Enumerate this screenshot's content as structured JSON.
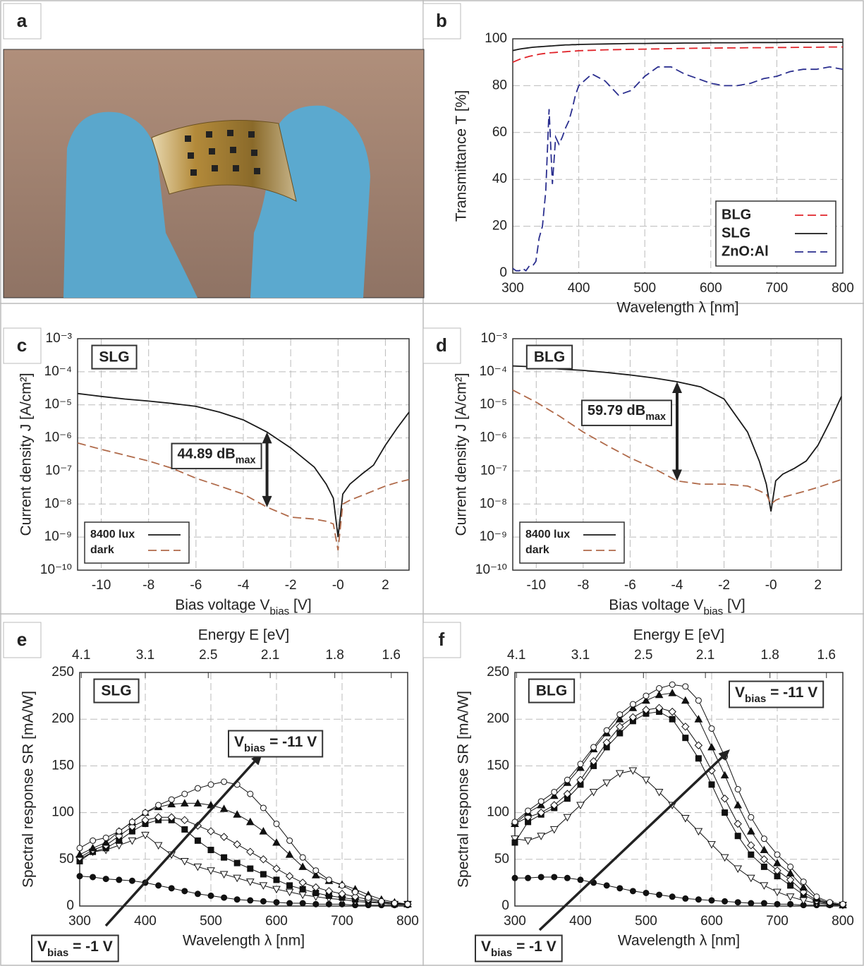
{
  "photo": {
    "panel": "a"
  },
  "chart_data": [
    {
      "type": "line",
      "panel": "b",
      "xlabel": "Wavelength λ [nm]",
      "ylabel": "Transmittance T [%]",
      "xlim": [
        300,
        800
      ],
      "xticks": [
        300,
        400,
        500,
        600,
        700,
        800
      ],
      "ylim": [
        0,
        100
      ],
      "yticks": [
        0,
        20,
        40,
        60,
        80,
        100
      ],
      "grid": true,
      "legend": "lower right",
      "x": [
        300,
        305,
        310,
        315,
        320,
        325,
        330,
        335,
        340,
        345,
        350,
        355,
        360,
        365,
        370,
        375,
        380,
        385,
        390,
        395,
        400,
        420,
        440,
        460,
        480,
        500,
        520,
        540,
        560,
        580,
        600,
        620,
        640,
        660,
        680,
        700,
        720,
        740,
        760,
        780,
        800
      ],
      "series": [
        {
          "name": "BLG",
          "color": "#e0242a",
          "dash": true,
          "values": [
            90,
            90.6,
            91.2,
            91.7,
            92.1,
            92.5,
            92.8,
            93.1,
            93.4,
            93.6,
            93.8,
            94,
            94.1,
            94.2,
            94.3,
            94.4,
            94.5,
            94.6,
            94.7,
            94.8,
            94.9,
            95.1,
            95.3,
            95.4,
            95.5,
            95.6,
            95.7,
            95.8,
            95.9,
            96,
            96,
            96.1,
            96.1,
            96.2,
            96.2,
            96.3,
            96.3,
            96.4,
            96.4,
            96.5,
            96.5
          ]
        },
        {
          "name": "SLG",
          "color": "#1a1a1a",
          "dash": false,
          "values": [
            95,
            95.3,
            95.6,
            95.8,
            96,
            96.2,
            96.4,
            96.5,
            96.6,
            96.7,
            96.8,
            96.9,
            97,
            97.1,
            97.2,
            97.3,
            97.4,
            97.4,
            97.5,
            97.5,
            97.6,
            97.7,
            97.8,
            97.9,
            98,
            98,
            98.1,
            98.1,
            98.2,
            98.2,
            98.3,
            98.3,
            98.3,
            98.4,
            98.4,
            98.4,
            98.5,
            98.5,
            98.5,
            98.5,
            98.5
          ]
        },
        {
          "name": "ZnO:Al",
          "color": "#2b2f8f",
          "dash": true,
          "values": [
            2,
            1,
            1,
            2,
            1,
            3,
            3,
            5,
            15,
            20,
            35,
            70,
            38,
            58,
            55,
            58,
            62,
            65,
            70,
            76,
            80,
            85,
            82,
            76,
            78,
            84,
            88,
            88,
            85,
            83,
            81,
            80,
            80,
            81,
            83,
            84,
            86,
            87,
            87,
            88,
            87
          ]
        }
      ]
    },
    {
      "type": "line",
      "panel": "c",
      "tag": "SLG",
      "yscale": "log",
      "xlabel": {
        "text": "Bias voltage V",
        "sub": "bias",
        "tail": " [V]"
      },
      "ylabel": "Current density J [A/cm²]",
      "xlim": [
        -11,
        3
      ],
      "xticks": [
        -10,
        -8,
        -6,
        -4,
        -2,
        {
          "value": 0,
          "label": "-0"
        },
        2
      ],
      "ylim": [
        1e-10,
        0.001
      ],
      "yticks": [
        {
          "value": 1e-10,
          "label": "10⁻¹⁰"
        },
        {
          "value": 1e-09,
          "label": "10⁻⁹"
        },
        {
          "value": 1e-08,
          "label": "10⁻⁸"
        },
        {
          "value": 1e-07,
          "label": "10⁻⁷"
        },
        {
          "value": 1e-06,
          "label": "10⁻⁶"
        },
        {
          "value": 1e-05,
          "label": "10⁻⁵"
        },
        {
          "value": 0.0001,
          "label": "10⁻⁴"
        },
        {
          "value": 0.001,
          "label": "10⁻³"
        }
      ],
      "grid": true,
      "legend": "lower left",
      "annotation": {
        "text": "44.89 dB",
        "sub": "max"
      },
      "x": [
        -11,
        -10,
        -9,
        -8,
        -7,
        -6,
        -5,
        -4,
        -3,
        -2,
        -1,
        -0.5,
        -0.2,
        0,
        0.2,
        0.5,
        1,
        1.5,
        2,
        2.5,
        3
      ],
      "series": [
        {
          "name": "8400 lux",
          "color": "#1a1a1a",
          "dash": false,
          "values": [
            2.2e-05,
            1.8e-05,
            1.5e-05,
            1.3e-05,
            1.1e-05,
            9e-06,
            6e-06,
            3.5e-06,
            1.5e-06,
            5e-07,
            1.3e-07,
            4e-08,
            1.5e-08,
            1e-09,
            2e-08,
            4e-08,
            8e-08,
            1.5e-07,
            6e-07,
            2e-06,
            6e-06
          ]
        },
        {
          "name": "dark",
          "color": "#b06a4a",
          "dash": true,
          "values": [
            7e-07,
            4.5e-07,
            3e-07,
            2e-07,
            1.2e-07,
            6e-08,
            3.5e-08,
            2e-08,
            8e-09,
            4e-09,
            3.5e-09,
            3e-09,
            2.5e-09,
            4e-10,
            1e-08,
            1.3e-08,
            1.8e-08,
            2.5e-08,
            3.5e-08,
            4.5e-08,
            5.5e-08
          ]
        }
      ]
    },
    {
      "type": "line",
      "panel": "d",
      "tag": "BLG",
      "yscale": "log",
      "xlabel": {
        "text": "Bias voltage V",
        "sub": "bias",
        "tail": " [V]"
      },
      "ylabel": "Current density J [A/cm²]",
      "xlim": [
        -11,
        3
      ],
      "xticks": [
        -10,
        -8,
        -6,
        -4,
        -2,
        {
          "value": 0,
          "label": "-0"
        },
        2
      ],
      "ylim": [
        1e-10,
        0.001
      ],
      "yticks": [
        {
          "value": 1e-10,
          "label": "10⁻¹⁰"
        },
        {
          "value": 1e-09,
          "label": "10⁻⁹"
        },
        {
          "value": 1e-08,
          "label": "10⁻⁸"
        },
        {
          "value": 1e-07,
          "label": "10⁻⁷"
        },
        {
          "value": 1e-06,
          "label": "10⁻⁶"
        },
        {
          "value": 1e-05,
          "label": "10⁻⁵"
        },
        {
          "value": 0.0001,
          "label": "10⁻⁴"
        },
        {
          "value": 0.001,
          "label": "10⁻³"
        }
      ],
      "grid": true,
      "legend": "lower left",
      "annotation": {
        "text": "59.79 dB",
        "sub": "max"
      },
      "x": [
        -11,
        -10,
        -9,
        -8,
        -7,
        -6,
        -5,
        -4,
        -3,
        -2,
        -1,
        -0.5,
        -0.2,
        0,
        0.2,
        0.5,
        1,
        1.5,
        2,
        2.5,
        3
      ],
      "series": [
        {
          "name": "8400 lux",
          "color": "#1a1a1a",
          "dash": false,
          "values": [
            0.00015,
            0.00014,
            0.00012,
            0.00011,
            9.5e-05,
            8e-05,
            6.5e-05,
            5e-05,
            3.5e-05,
            1.5e-05,
            1.5e-06,
            2e-07,
            4e-08,
            6e-09,
            5e-08,
            8e-08,
            1.2e-07,
            2e-07,
            6e-07,
            3e-06,
            1.8e-05
          ]
        },
        {
          "name": "dark",
          "color": "#b06a4a",
          "dash": true,
          "values": [
            2.8e-05,
            1.2e-05,
            4.5e-06,
            1.5e-06,
            6e-07,
            2.5e-07,
            1.2e-07,
            5e-08,
            4e-08,
            4e-08,
            3.5e-08,
            2.5e-08,
            2e-08,
            1e-08,
            1.3e-08,
            1.6e-08,
            2e-08,
            2.5e-08,
            3.2e-08,
            4.2e-08,
            5.5e-08
          ]
        }
      ]
    },
    {
      "type": "line",
      "panel": "e",
      "tag": "SLG",
      "xlabel": "Wavelength λ [nm]",
      "ylabel": "Spectral response SR [mA/W]",
      "x2label": "Energy E [eV]",
      "xlim": [
        300,
        800
      ],
      "xticks": [
        300,
        400,
        500,
        600,
        700,
        800
      ],
      "ylim": [
        0,
        250
      ],
      "yticks": [
        0,
        50,
        100,
        150,
        200,
        250
      ],
      "x2ticks": [
        4.1,
        3.1,
        2.5,
        2.1,
        1.8,
        1.6
      ],
      "grid": true,
      "annotations": [
        {
          "main": "V",
          "sub": "bias",
          "tail": " = -11 V"
        },
        {
          "main": "V",
          "sub": "bias",
          "tail": " = -1 V"
        }
      ],
      "x": [
        300,
        320,
        340,
        360,
        380,
        400,
        420,
        440,
        460,
        480,
        500,
        520,
        540,
        560,
        580,
        600,
        620,
        640,
        660,
        680,
        700,
        720,
        740,
        760,
        780,
        800
      ],
      "series": [
        {
          "color": "#111",
          "marker": "circle",
          "filled": true,
          "values": [
            32,
            31,
            29,
            28,
            27,
            25,
            22,
            19,
            16,
            13,
            11,
            9,
            7,
            6,
            5,
            4,
            3,
            3,
            2,
            2,
            2,
            1,
            1,
            1,
            1,
            1
          ]
        },
        {
          "color": "#111",
          "marker": "triangle-down",
          "filled": false,
          "values": [
            50,
            58,
            60,
            65,
            70,
            76,
            65,
            55,
            48,
            42,
            38,
            34,
            30,
            26,
            22,
            18,
            15,
            12,
            10,
            8,
            7,
            5,
            4,
            3,
            2,
            2
          ]
        },
        {
          "color": "#111",
          "marker": "square",
          "filled": true,
          "values": [
            48,
            58,
            62,
            70,
            80,
            88,
            92,
            92,
            82,
            70,
            60,
            52,
            46,
            40,
            34,
            28,
            22,
            18,
            14,
            11,
            9,
            7,
            5,
            3,
            2,
            2
          ]
        },
        {
          "color": "#111",
          "marker": "diamond",
          "filled": false,
          "values": [
            52,
            60,
            65,
            75,
            85,
            92,
            95,
            95,
            92,
            86,
            80,
            74,
            66,
            58,
            50,
            40,
            32,
            25,
            20,
            16,
            13,
            10,
            7,
            4,
            3,
            2
          ]
        },
        {
          "color": "#111",
          "marker": "triangle-up",
          "filled": true,
          "values": [
            55,
            62,
            68,
            80,
            90,
            100,
            106,
            109,
            110,
            110,
            108,
            104,
            98,
            90,
            80,
            68,
            55,
            42,
            33,
            27,
            23,
            18,
            12,
            7,
            4,
            2
          ]
        },
        {
          "color": "#111",
          "marker": "circle",
          "filled": false,
          "values": [
            62,
            70,
            73,
            80,
            90,
            100,
            108,
            114,
            120,
            126,
            130,
            133,
            130,
            120,
            105,
            88,
            70,
            52,
            38,
            28,
            22,
            15,
            9,
            5,
            3,
            2
          ]
        }
      ]
    },
    {
      "type": "line",
      "panel": "f",
      "tag": "BLG",
      "xlabel": "Wavelength λ [nm]",
      "ylabel": "Spectral response SR [mA/W]",
      "x2label": "Energy E [eV]",
      "xlim": [
        300,
        800
      ],
      "xticks": [
        300,
        400,
        500,
        600,
        700,
        800
      ],
      "ylim": [
        0,
        250
      ],
      "yticks": [
        0,
        50,
        100,
        150,
        200,
        250
      ],
      "x2ticks": [
        4.1,
        3.1,
        2.5,
        2.1,
        1.8,
        1.6
      ],
      "grid": true,
      "annotations": [
        {
          "main": "V",
          "sub": "bias",
          "tail": " = -11 V"
        },
        {
          "main": "V",
          "sub": "bias",
          "tail": " = -1 V"
        }
      ],
      "x": [
        300,
        320,
        340,
        360,
        380,
        400,
        420,
        440,
        460,
        480,
        500,
        520,
        540,
        560,
        580,
        600,
        620,
        640,
        660,
        680,
        700,
        720,
        740,
        760,
        780,
        800
      ],
      "series": [
        {
          "color": "#111",
          "marker": "circle",
          "filled": true,
          "values": [
            30,
            30,
            31,
            31,
            30,
            28,
            25,
            22,
            19,
            16,
            14,
            12,
            10,
            8,
            7,
            6,
            5,
            4,
            3,
            3,
            2,
            2,
            1,
            1,
            1,
            1
          ]
        },
        {
          "color": "#111",
          "marker": "triangle-down",
          "filled": false,
          "values": [
            72,
            70,
            75,
            82,
            95,
            108,
            122,
            132,
            142,
            145,
            135,
            122,
            108,
            94,
            80,
            66,
            52,
            40,
            30,
            22,
            15,
            10,
            6,
            3,
            2,
            1
          ]
        },
        {
          "color": "#111",
          "marker": "square",
          "filled": true,
          "values": [
            68,
            90,
            98,
            105,
            115,
            130,
            150,
            170,
            185,
            198,
            206,
            208,
            200,
            180,
            158,
            130,
            100,
            75,
            55,
            42,
            32,
            22,
            12,
            5,
            2,
            1
          ]
        },
        {
          "color": "#111",
          "marker": "diamond",
          "filled": false,
          "values": [
            88,
            95,
            100,
            108,
            120,
            135,
            155,
            175,
            192,
            202,
            210,
            212,
            208,
            192,
            172,
            145,
            115,
            88,
            65,
            50,
            38,
            28,
            15,
            6,
            3,
            1
          ]
        },
        {
          "color": "#111",
          "marker": "triangle-up",
          "filled": true,
          "values": [
            88,
            100,
            108,
            118,
            132,
            148,
            168,
            185,
            200,
            212,
            220,
            226,
            228,
            220,
            200,
            170,
            140,
            108,
            80,
            60,
            46,
            35,
            20,
            8,
            3,
            1
          ]
        },
        {
          "color": "#111",
          "marker": "circle",
          "filled": false,
          "values": [
            90,
            102,
            112,
            122,
            135,
            152,
            170,
            188,
            205,
            216,
            225,
            233,
            237,
            235,
            220,
            190,
            160,
            125,
            95,
            72,
            55,
            42,
            26,
            10,
            4,
            2
          ]
        }
      ]
    }
  ]
}
